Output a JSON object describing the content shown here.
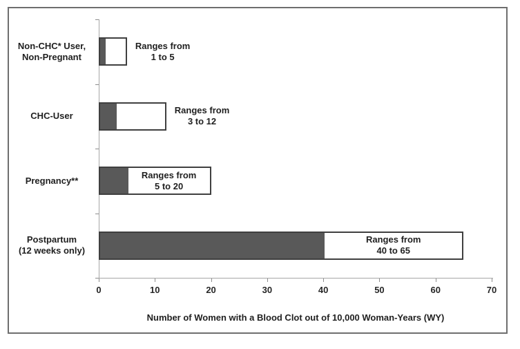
{
  "chart_data": {
    "type": "bar",
    "orientation": "horizontal",
    "title": "",
    "xlabel": "Number of Women with a Blood Clot out of 10,000 Woman-Years (WY)",
    "ylabel": "",
    "xlim": [
      0,
      70
    ],
    "x_ticks": [
      "0",
      "10",
      "20",
      "30",
      "40",
      "50",
      "60",
      "70"
    ],
    "x_tick_values": [
      0,
      10,
      20,
      30,
      40,
      50,
      60,
      70
    ],
    "grid": false,
    "categories": [
      "Non-CHC* User, Non-Pregnant",
      "CHC-User",
      "Pregnancy**",
      "Postpartum (12 weeks only)"
    ],
    "bars": [
      {
        "category_lines": [
          "Non-CHC* User,",
          "Non-Pregnant"
        ],
        "range_low": 1,
        "range_high": 5,
        "label_lines": [
          "Ranges from",
          "1 to 5"
        ],
        "label_position": "outside"
      },
      {
        "category_lines": [
          "CHC-User"
        ],
        "range_low": 3,
        "range_high": 12,
        "label_lines": [
          "Ranges from",
          "3 to 12"
        ],
        "label_position": "outside"
      },
      {
        "category_lines": [
          "Pregnancy**"
        ],
        "range_low": 5,
        "range_high": 20,
        "label_lines": [
          "Ranges from",
          "5 to 20"
        ],
        "label_position": "inside"
      },
      {
        "category_lines": [
          "Postpartum",
          "(12 weeks only)"
        ],
        "range_low": 40,
        "range_high": 65,
        "label_lines": [
          "Ranges from",
          "40 to 65"
        ],
        "label_position": "inside"
      }
    ],
    "colors": {
      "dark_segment": "#595959",
      "light_segment": "#ffffff",
      "bar_border": "#3f3f3f",
      "axis_line": "#a6a6a6",
      "text": "#1f1f1f",
      "frame_border": "#6e6e6e"
    }
  }
}
